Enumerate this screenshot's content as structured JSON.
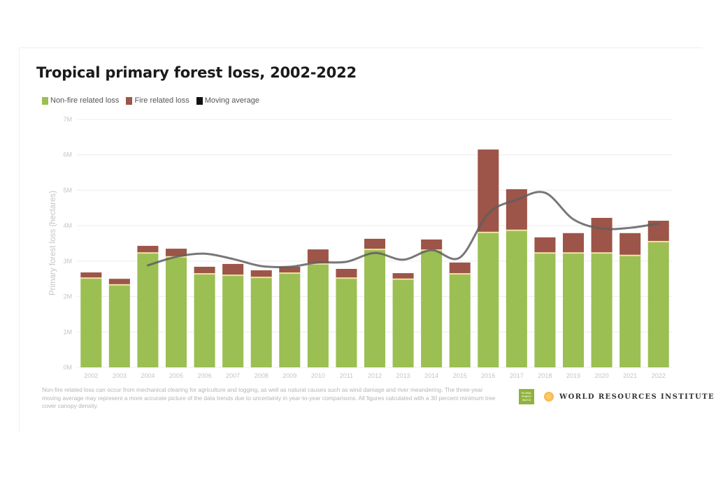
{
  "chart_data": {
    "type": "bar",
    "stacked": true,
    "title": "Tropical primary forest loss, 2002-2022",
    "xlabel": "",
    "ylabel": "Primary forest loss (hectares)",
    "ylim": [
      0,
      7000000
    ],
    "yticks": [
      0,
      1000000,
      2000000,
      3000000,
      4000000,
      5000000,
      6000000,
      7000000
    ],
    "ytick_labels": [
      "0M",
      "1M",
      "2M",
      "3M",
      "4M",
      "5M",
      "6M",
      "7M"
    ],
    "grid": true,
    "legend_position": "top-left",
    "categories": [
      "2002",
      "2003",
      "2004",
      "2005",
      "2006",
      "2007",
      "2008",
      "2009",
      "2010",
      "2011",
      "2012",
      "2013",
      "2014",
      "2015",
      "2016",
      "2017",
      "2018",
      "2019",
      "2020",
      "2021",
      "2022"
    ],
    "series": [
      {
        "name": "Non-fire related loss",
        "type": "bar",
        "color": "#9bbf52",
        "values": [
          2520000,
          2330000,
          3230000,
          3120000,
          2640000,
          2600000,
          2540000,
          2660000,
          2920000,
          2520000,
          3330000,
          2490000,
          3310000,
          2640000,
          3810000,
          3870000,
          3230000,
          3230000,
          3230000,
          3160000,
          3550000
        ]
      },
      {
        "name": "Fire related loss",
        "type": "bar",
        "color": "#9c5548",
        "values": [
          160000,
          170000,
          200000,
          230000,
          200000,
          320000,
          200000,
          180000,
          410000,
          260000,
          300000,
          170000,
          300000,
          320000,
          2340000,
          1160000,
          440000,
          560000,
          990000,
          630000,
          590000
        ]
      },
      {
        "name": "Moving average",
        "type": "line",
        "color": "#000000",
        "x": [
          "2004",
          "2005",
          "2006",
          "2007",
          "2008",
          "2009",
          "2010",
          "2011",
          "2012",
          "2013",
          "2014",
          "2015",
          "2016",
          "2017",
          "2018",
          "2019",
          "2020",
          "2021",
          "2022"
        ],
        "values": [
          2880000,
          3120000,
          3210000,
          3060000,
          2860000,
          2840000,
          2960000,
          2980000,
          3230000,
          3040000,
          3310000,
          3100000,
          4340000,
          4730000,
          4930000,
          4180000,
          3920000,
          3940000,
          4060000
        ]
      }
    ]
  },
  "legend": {
    "items": [
      {
        "label": "Non-fire related loss",
        "color": "#9bbf52"
      },
      {
        "label": "Fire related loss",
        "color": "#9c5548"
      },
      {
        "label": "Moving average",
        "color": "#111111"
      }
    ]
  },
  "footnote": "Non-fire related loss can occur from mechanical clearing for agriculture and logging, as well as natural causes such as wind damage and river meandering. The three-year moving average may represent a more accurate picture of the data trends due to uncertainty in year-to-year comparisons. All figures calculated with a 30 percent minimum tree cover canopy density.",
  "logos": {
    "gfw_lines": [
      "GLOBAL",
      "FOREST",
      "WATCH"
    ],
    "wri": "WORLD RESOURCES INSTITUTE"
  },
  "colors": {
    "separator": "#f3e2a6",
    "moving_average_line": "#5f5f5f",
    "grid": "#ececec",
    "tick_text": "#c4c4c4"
  }
}
